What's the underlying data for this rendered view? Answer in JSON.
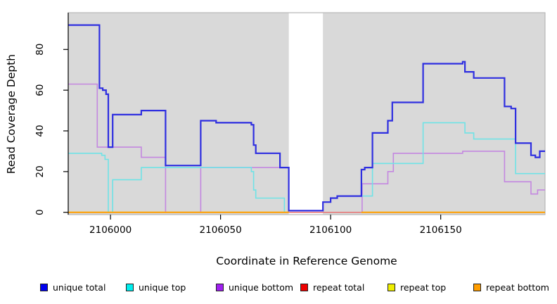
{
  "chart_data": {
    "type": "line",
    "subtype": "step-coverage",
    "title": "",
    "xlabel": "Coordinate in Reference Genome",
    "ylabel": "Read Coverage Depth",
    "x_range": [
      2105980.8,
      2106197.4
    ],
    "y_range": [
      0,
      98
    ],
    "grid": false,
    "panel_bg": "#D9D9D9",
    "panel_border": "#ADADAD",
    "axis_color": "#000000",
    "x_ticks": {
      "values": [
        2106000,
        2106050,
        2106100,
        2106150
      ],
      "labels": [
        "2106000",
        "2106050",
        "2106100",
        "2106150"
      ]
    },
    "y_ticks": {
      "values": [
        0,
        20,
        40,
        60,
        80
      ],
      "labels": [
        "0",
        "20",
        "40",
        "60",
        "80"
      ]
    },
    "masked_region": {
      "start": 2106081,
      "end": 2106096.5,
      "color": "#FFFFFF"
    },
    "series": [
      {
        "name": "unique total",
        "color": "#2E2EE0",
        "width": 2.2,
        "runs": [
          {
            "end": 2106197.4,
            "points": [
              [
                2105980.8,
                92
              ],
              [
                2105995,
                61
              ],
              [
                2105996.5,
                60
              ],
              [
                2105998,
                58
              ],
              [
                2105999,
                32
              ],
              [
                2106001,
                48
              ],
              [
                2106014,
                50
              ],
              [
                2106025,
                23
              ],
              [
                2106041,
                45
              ],
              [
                2106048,
                44
              ],
              [
                2106064,
                43
              ],
              [
                2106065,
                33
              ],
              [
                2106066,
                29
              ],
              [
                2106077,
                22
              ],
              [
                2106081,
                0.8
              ],
              [
                2106096.5,
                5
              ],
              [
                2106100,
                7
              ],
              [
                2106103,
                8
              ],
              [
                2106114,
                21
              ],
              [
                2106115.5,
                22
              ],
              [
                2106119,
                39
              ],
              [
                2106126,
                45
              ],
              [
                2106128,
                54
              ],
              [
                2106142,
                73
              ],
              [
                2106160,
                74
              ],
              [
                2106161,
                69
              ],
              [
                2106165,
                66
              ],
              [
                2106179,
                52
              ],
              [
                2106182,
                51
              ],
              [
                2106184,
                34
              ],
              [
                2106191,
                28
              ],
              [
                2106193,
                27
              ],
              [
                2106195,
                30
              ]
            ]
          }
        ]
      },
      {
        "name": "unique top",
        "color": "#6FE3E6",
        "width": 1.6,
        "runs": [
          {
            "end": 2106081,
            "points": [
              [
                2105980.8,
                29
              ],
              [
                2105996,
                28
              ],
              [
                2105997.5,
                26
              ],
              [
                2105999,
                0
              ],
              [
                2106001,
                16
              ],
              [
                2106014,
                22
              ],
              [
                2106064,
                20
              ],
              [
                2106065,
                11
              ],
              [
                2106066,
                7
              ],
              [
                2106079,
                0
              ]
            ]
          },
          {
            "end": 2106197.4,
            "points": [
              [
                2106096.5,
                5
              ],
              [
                2106100,
                7
              ],
              [
                2106103,
                8
              ],
              [
                2106119,
                24
              ],
              [
                2106142,
                44
              ],
              [
                2106161,
                39
              ],
              [
                2106165,
                36
              ],
              [
                2106184,
                19
              ]
            ]
          }
        ]
      },
      {
        "name": "unique bottom",
        "color": "#C487E0",
        "width": 1.6,
        "runs": [
          {
            "end": 2106081,
            "points": [
              [
                2105980.8,
                63
              ],
              [
                2105994,
                32
              ],
              [
                2106014,
                27
              ],
              [
                2106025,
                0
              ],
              [
                2106041,
                22
              ]
            ]
          },
          {
            "end": 2106197.4,
            "points": [
              [
                2106114,
                0
              ],
              [
                2106114.3,
                14
              ],
              [
                2106126,
                20
              ],
              [
                2106128.5,
                29
              ],
              [
                2106160,
                30
              ],
              [
                2106179,
                15
              ],
              [
                2106191,
                9
              ],
              [
                2106194,
                11
              ]
            ]
          }
        ]
      },
      {
        "name": "repeat total",
        "color": "#E86A6A",
        "width": 1.3,
        "runs": [
          {
            "end": 2106114,
            "points": [
              [
                2106080.5,
                0
              ]
            ]
          }
        ]
      },
      {
        "name": "repeat top",
        "color": "#EDED00",
        "width": 1.6,
        "runs": [
          {
            "end": 2106081,
            "points": [
              [
                2105980.8,
                0
              ]
            ]
          },
          {
            "end": 2106197.4,
            "points": [
              [
                2106114,
                0
              ]
            ]
          }
        ]
      },
      {
        "name": "repeat bottom",
        "color": "#FF9E00",
        "width": 2,
        "runs": [
          {
            "end": 2106081,
            "points": [
              [
                2105980.8,
                0
              ]
            ]
          },
          {
            "end": 2106197.4,
            "points": [
              [
                2106114,
                0
              ]
            ]
          }
        ]
      }
    ],
    "legend_position": "bottom"
  },
  "legend": {
    "items": [
      {
        "label": "unique total",
        "color": "#0000EE"
      },
      {
        "label": "unique top",
        "color": "#00EEEE"
      },
      {
        "label": "unique bottom",
        "color": "#A020F0"
      },
      {
        "label": "repeat total",
        "color": "#EE0000"
      },
      {
        "label": "repeat top",
        "color": "#EEEE00"
      },
      {
        "label": "repeat bottom",
        "color": "#FF9D00"
      }
    ]
  }
}
